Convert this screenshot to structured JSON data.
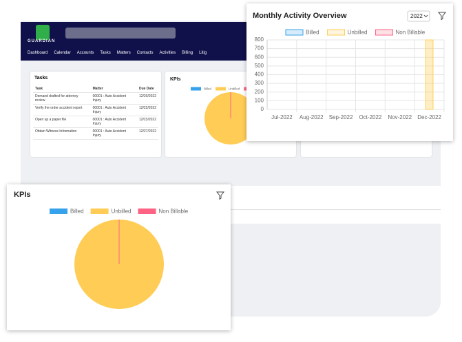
{
  "app": {
    "logo": "GUARDIAN",
    "nav": [
      "Dashboard",
      "Calendar",
      "Accounts",
      "Tasks",
      "Matters",
      "Contacts",
      "Activities",
      "Billing",
      "Litig"
    ]
  },
  "tasks": {
    "title": "Tasks",
    "columns": [
      "Task",
      "Matter",
      "Due Date"
    ],
    "rows": [
      [
        "Demand drafted for attorney review",
        "00001 : Auto Accident Injury",
        "12/20/2022"
      ],
      [
        "Verify the order accident report",
        "00001 : Auto Accident Injury",
        "12/22/2022"
      ],
      [
        "Open up a paper file",
        "00001 : Auto Accident Injury",
        "12/23/2022"
      ],
      [
        "Obtain Witness Information",
        "00001 : Auto Accident Injury",
        "12/27/2022"
      ]
    ]
  },
  "monthly_activity": {
    "type": "bar",
    "title": "Monthly Activity Overview",
    "year_select": "2022",
    "categories": [
      "Jul-2022",
      "Aug-2022",
      "Sep-2022",
      "Oct-2022",
      "Nov-2022",
      "Dec-2022"
    ],
    "series": [
      {
        "name": "Billed",
        "color": "#36a2eb",
        "values": [
          0,
          0,
          0,
          0,
          0,
          0
        ]
      },
      {
        "name": "Unbilled",
        "color": "#ffcd56",
        "values": [
          0,
          0,
          0,
          0,
          0,
          800
        ]
      },
      {
        "name": "Non Billable",
        "color": "#ff6384",
        "values": [
          0,
          0,
          0,
          0,
          0,
          0
        ]
      }
    ],
    "ylim": [
      0,
      800
    ],
    "yticks": [
      0,
      100,
      200,
      300,
      400,
      500,
      600,
      700,
      800
    ],
    "grid": true
  },
  "kpis": {
    "type": "pie",
    "title": "KPIs",
    "categories": [
      "Billed",
      "Unbilled",
      "Non Billable"
    ],
    "values": [
      0,
      800,
      0
    ],
    "colors": [
      "#36a2eb",
      "#ffcd56",
      "#ff6384"
    ]
  }
}
